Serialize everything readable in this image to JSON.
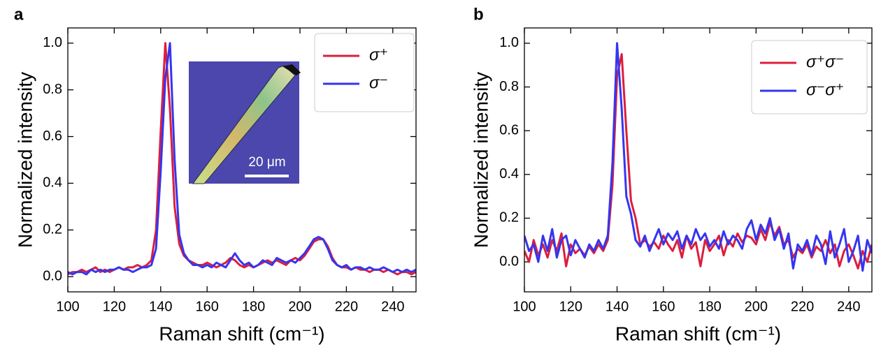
{
  "chart_data": [
    {
      "type": "line",
      "panel_label": "a",
      "xlabel": "Raman shift (cm⁻¹)",
      "ylabel": "Normalized intensity",
      "x": [
        100,
        102,
        104,
        106,
        108,
        110,
        112,
        114,
        116,
        118,
        120,
        122,
        124,
        126,
        128,
        130,
        132,
        134,
        136,
        138,
        140,
        142,
        144,
        146,
        148,
        150,
        152,
        154,
        156,
        158,
        160,
        162,
        164,
        166,
        168,
        170,
        172,
        174,
        176,
        178,
        180,
        182,
        184,
        186,
        188,
        190,
        192,
        194,
        196,
        198,
        200,
        202,
        204,
        206,
        208,
        210,
        212,
        214,
        216,
        218,
        220,
        222,
        224,
        226,
        228,
        230,
        232,
        234,
        236,
        238,
        240,
        242,
        244,
        246,
        248,
        250
      ],
      "series": [
        {
          "name": "σ⁺",
          "color": "#dc1e3c",
          "values": [
            0.01,
            0.02,
            0.02,
            0.03,
            0.02,
            0.03,
            0.04,
            0.02,
            0.03,
            0.02,
            0.03,
            0.04,
            0.03,
            0.04,
            0.04,
            0.05,
            0.04,
            0.05,
            0.07,
            0.2,
            0.62,
            1.0,
            0.72,
            0.3,
            0.14,
            0.09,
            0.07,
            0.06,
            0.05,
            0.05,
            0.06,
            0.05,
            0.04,
            0.05,
            0.06,
            0.08,
            0.07,
            0.05,
            0.04,
            0.05,
            0.04,
            0.05,
            0.06,
            0.07,
            0.06,
            0.07,
            0.06,
            0.05,
            0.07,
            0.08,
            0.07,
            0.09,
            0.12,
            0.15,
            0.16,
            0.16,
            0.13,
            0.08,
            0.05,
            0.04,
            0.04,
            0.03,
            0.04,
            0.03,
            0.03,
            0.02,
            0.03,
            0.03,
            0.02,
            0.03,
            0.02,
            0.01,
            0.02,
            0.02,
            0.01,
            0.02
          ]
        },
        {
          "name": "σ⁻",
          "color": "#3535f0",
          "values": [
            0.02,
            0.01,
            0.02,
            0.02,
            0.01,
            0.03,
            0.02,
            0.03,
            0.02,
            0.03,
            0.03,
            0.04,
            0.03,
            0.03,
            0.02,
            0.03,
            0.04,
            0.04,
            0.05,
            0.12,
            0.45,
            0.85,
            1.0,
            0.5,
            0.18,
            0.1,
            0.07,
            0.05,
            0.05,
            0.04,
            0.05,
            0.04,
            0.06,
            0.05,
            0.04,
            0.07,
            0.1,
            0.07,
            0.05,
            0.06,
            0.04,
            0.05,
            0.07,
            0.06,
            0.05,
            0.08,
            0.07,
            0.06,
            0.07,
            0.06,
            0.08,
            0.1,
            0.13,
            0.16,
            0.17,
            0.16,
            0.12,
            0.07,
            0.05,
            0.04,
            0.05,
            0.03,
            0.04,
            0.04,
            0.03,
            0.04,
            0.03,
            0.03,
            0.04,
            0.03,
            0.02,
            0.03,
            0.02,
            0.03,
            0.02,
            0.03
          ]
        }
      ],
      "xlim": [
        100,
        250
      ],
      "ylim": [
        -0.065,
        1.065
      ],
      "xticks": [
        100,
        120,
        140,
        160,
        180,
        200,
        220,
        240
      ],
      "yticks": [
        {
          "value": 0,
          "label": "0.0"
        },
        0.2,
        0.4,
        0.6,
        0.8,
        {
          "value": 1,
          "label": "1.0"
        }
      ],
      "legend": "upper right",
      "annotations": [
        "20 μm"
      ]
    },
    {
      "type": "line",
      "panel_label": "b",
      "xlabel": "Raman shift (cm⁻¹)",
      "ylabel": "Normalized intensity",
      "x": [
        100,
        102,
        104,
        106,
        108,
        110,
        112,
        114,
        116,
        118,
        120,
        122,
        124,
        126,
        128,
        130,
        132,
        134,
        136,
        138,
        140,
        142,
        144,
        146,
        148,
        150,
        152,
        154,
        156,
        158,
        160,
        162,
        164,
        166,
        168,
        170,
        172,
        174,
        176,
        178,
        180,
        182,
        184,
        186,
        188,
        190,
        192,
        194,
        196,
        198,
        200,
        202,
        204,
        206,
        208,
        210,
        212,
        214,
        216,
        218,
        220,
        222,
        224,
        226,
        228,
        230,
        232,
        234,
        236,
        238,
        240,
        242,
        244,
        246,
        248,
        250
      ],
      "series": [
        {
          "name": "σ⁺σ⁻",
          "color": "#dc1e3c",
          "values": [
            0.05,
            0.0,
            0.1,
            0.03,
            0.08,
            0.02,
            0.1,
            0.05,
            0.13,
            -0.02,
            0.08,
            0.04,
            0.06,
            0.03,
            0.07,
            0.04,
            0.08,
            0.05,
            0.1,
            0.35,
            0.85,
            0.95,
            0.6,
            0.28,
            0.2,
            0.08,
            0.1,
            0.07,
            0.09,
            0.06,
            0.12,
            0.08,
            0.05,
            0.1,
            0.02,
            0.12,
            0.06,
            0.09,
            -0.02,
            0.1,
            0.05,
            0.08,
            0.12,
            0.03,
            0.1,
            0.07,
            0.13,
            0.09,
            0.12,
            0.11,
            0.08,
            0.15,
            0.1,
            0.18,
            0.12,
            0.16,
            0.08,
            0.1,
            0.02,
            0.06,
            0.04,
            0.08,
            0.02,
            0.07,
            0.05,
            0.1,
            0.04,
            0.08,
            -0.02,
            0.05,
            0.08,
            0.03,
            -0.03,
            0.05,
            0.0,
            0.08
          ]
        },
        {
          "name": "σ⁻σ⁺",
          "color": "#3535f0",
          "values": [
            0.12,
            0.05,
            0.08,
            0.0,
            0.12,
            0.05,
            0.15,
            0.02,
            0.1,
            0.12,
            0.03,
            0.1,
            0.06,
            0.02,
            0.08,
            0.05,
            0.1,
            0.06,
            0.12,
            0.45,
            1.0,
            0.7,
            0.3,
            0.22,
            0.1,
            0.07,
            0.12,
            0.05,
            0.1,
            0.15,
            0.08,
            0.13,
            0.1,
            0.14,
            0.06,
            0.12,
            0.08,
            0.15,
            0.1,
            0.13,
            0.07,
            0.1,
            0.06,
            0.14,
            0.08,
            0.12,
            0.1,
            0.06,
            0.15,
            0.19,
            0.1,
            0.17,
            0.13,
            0.2,
            0.1,
            0.15,
            0.06,
            0.13,
            -0.03,
            0.08,
            0.05,
            0.1,
            0.03,
            0.12,
            0.08,
            -0.01,
            0.14,
            0.02,
            0.08,
            0.15,
            0.0,
            0.05,
            0.12,
            -0.04,
            0.1,
            0.04
          ]
        }
      ],
      "xlim": [
        100,
        250
      ],
      "ylim": [
        -0.137,
        1.07
      ],
      "xticks": [
        100,
        120,
        140,
        160,
        180,
        200,
        220,
        240
      ],
      "yticks": [
        {
          "value": 0,
          "label": "0.0"
        },
        0.2,
        0.4,
        0.6,
        0.8,
        {
          "value": 1,
          "label": "1.0"
        }
      ],
      "legend": "upper right"
    }
  ]
}
